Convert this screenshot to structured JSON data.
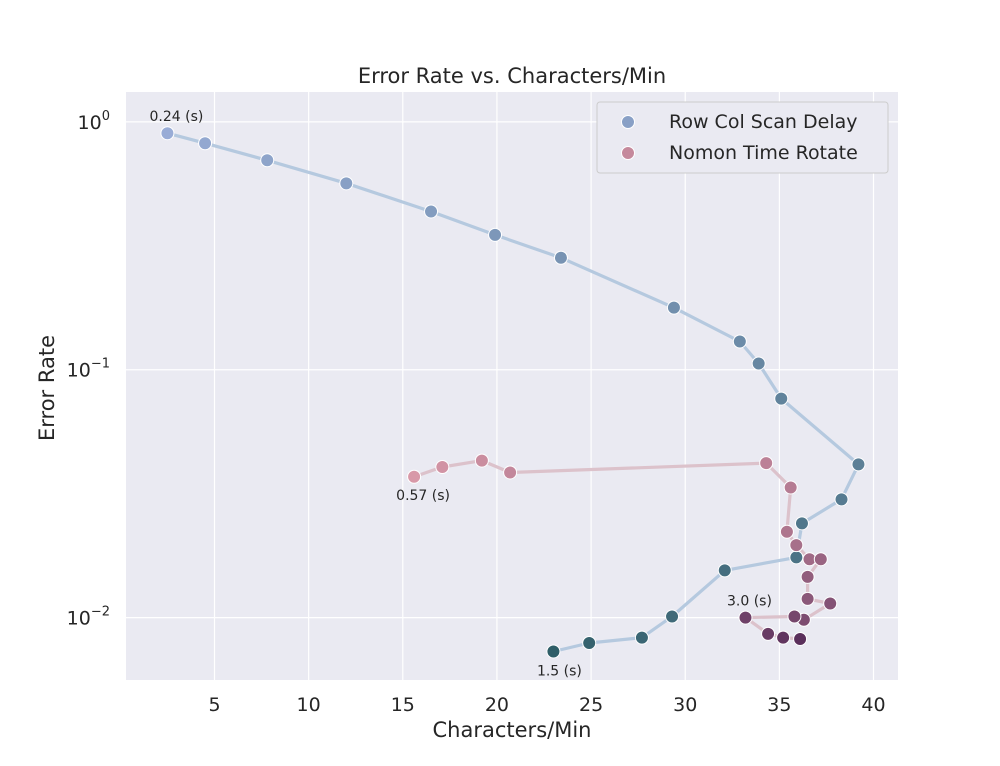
{
  "chart_data": {
    "type": "line",
    "title": "Error Rate vs. Characters/Min",
    "xlabel": "Characters/Min",
    "ylabel": "Error Rate",
    "xlim": [
      0.3,
      41.3
    ],
    "ylim": [
      0.0056,
      1.32
    ],
    "yscale": "log",
    "xticks": [
      5,
      10,
      15,
      20,
      25,
      30,
      35,
      40
    ],
    "yticks": [
      {
        "value": 1,
        "base": "10",
        "exp": "0"
      },
      {
        "value": 0.1,
        "base": "10",
        "exp": "−1"
      },
      {
        "value": 0.01,
        "base": "10",
        "exp": "−2"
      }
    ],
    "grid": true,
    "legend_position": "top-right",
    "series": [
      {
        "name": "Row Col Scan Delay",
        "line_color": "#b5c9df",
        "point_colors": [
          "#99acd6",
          "#2f5e68"
        ],
        "points": [
          [
            2.5,
            0.9
          ],
          [
            4.5,
            0.82
          ],
          [
            7.8,
            0.7
          ],
          [
            12.0,
            0.565
          ],
          [
            16.5,
            0.435
          ],
          [
            19.9,
            0.35
          ],
          [
            23.4,
            0.283
          ],
          [
            29.4,
            0.178
          ],
          [
            32.9,
            0.13
          ],
          [
            33.9,
            0.106
          ],
          [
            35.1,
            0.0765
          ],
          [
            39.2,
            0.0415
          ],
          [
            38.3,
            0.03
          ],
          [
            36.2,
            0.024
          ],
          [
            35.9,
            0.0175
          ],
          [
            32.1,
            0.0155
          ],
          [
            29.3,
            0.0101
          ],
          [
            27.7,
            0.0083
          ],
          [
            24.9,
            0.0079
          ],
          [
            23.0,
            0.0073
          ]
        ]
      },
      {
        "name": "Nomon Time Rotate",
        "line_color": "#dcc2cb",
        "point_colors": [
          "#d899a8",
          "#5a2f5b"
        ],
        "points": [
          [
            15.6,
            0.037
          ],
          [
            17.1,
            0.0405
          ],
          [
            19.2,
            0.043
          ],
          [
            20.7,
            0.0385
          ],
          [
            34.3,
            0.042
          ],
          [
            35.6,
            0.0335
          ],
          [
            35.4,
            0.0222
          ],
          [
            35.9,
            0.0196
          ],
          [
            36.6,
            0.0172
          ],
          [
            37.2,
            0.0172
          ],
          [
            36.5,
            0.0146
          ],
          [
            36.5,
            0.0119
          ],
          [
            37.7,
            0.0114
          ],
          [
            36.3,
            0.0098
          ],
          [
            35.8,
            0.0101
          ],
          [
            33.2,
            0.01
          ],
          [
            34.4,
            0.0086
          ],
          [
            35.2,
            0.0083
          ],
          [
            36.1,
            0.0082
          ]
        ]
      }
    ],
    "annotations": [
      {
        "text": "0.24 (s)",
        "x": 2.5,
        "y": 0.9
      },
      {
        "text": "0.57 (s)",
        "x": 15.6,
        "y": 0.037
      },
      {
        "text": "3.0 (s)",
        "x": 33.2,
        "y": 0.01
      },
      {
        "text": "1.5 (s)",
        "x": 23.0,
        "y": 0.0073
      }
    ]
  }
}
